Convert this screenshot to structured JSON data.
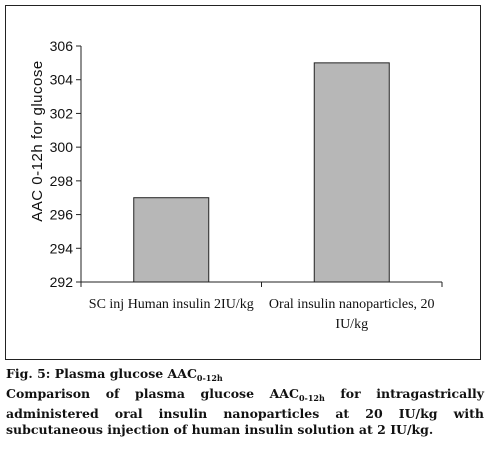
{
  "chart_data": {
    "type": "bar",
    "categories": [
      "SC inj Human insulin 2IU/kg",
      "Oral insulin nanoparticles, 20 IU/kg"
    ],
    "category_lines": [
      [
        "SC inj Human insulin 2IU/kg"
      ],
      [
        "Oral insulin nanoparticles, 20",
        "IU/kg"
      ]
    ],
    "values": [
      297,
      305
    ],
    "ylabel": "AAC 0-12h for glucose",
    "ylim": [
      292,
      306
    ],
    "yticks": [
      292,
      294,
      296,
      298,
      300,
      302,
      304,
      306
    ],
    "grid": false,
    "bar_color": "#b7b7b7"
  },
  "caption": {
    "fig_label": "Fig. 5: Plasma glucose AAC",
    "fig_label_sub": "0-12h",
    "text_before_sub": "Comparison of plasma glucose AAC",
    "text_sub": "0-12h",
    "text_after_sub": " for intragastrically administered oral insulin nanoparticles at 20 IU/kg with subcutaneous injection of human insulin solution at 2 IU/kg."
  }
}
